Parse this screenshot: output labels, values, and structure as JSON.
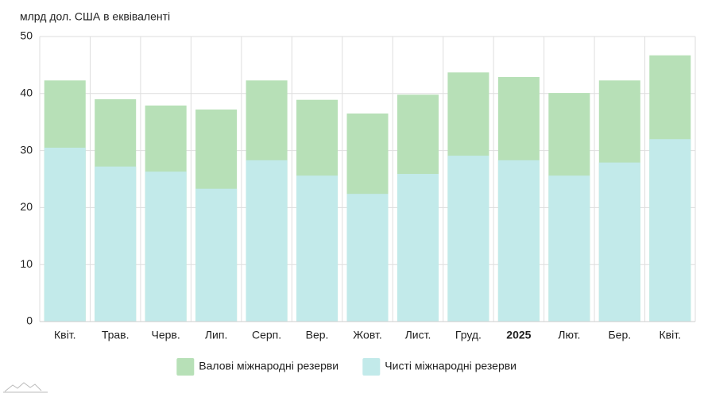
{
  "chart_data": {
    "type": "bar",
    "y_label": "млрд дол. США в еквіваленті",
    "categories": [
      "Квіт.",
      "Трав.",
      "Черв.",
      "Лип.",
      "Серп.",
      "Вер.",
      "Жовт.",
      "Лист.",
      "Груд.",
      "2025",
      "Лют.",
      "Бер.",
      "Квіт."
    ],
    "series": [
      {
        "name": "Валові міжнародні резерви",
        "color": "#b7e0b7",
        "values": [
          42.3,
          39.0,
          37.9,
          37.2,
          42.3,
          38.9,
          36.5,
          39.8,
          43.7,
          42.9,
          40.1,
          42.3,
          46.7
        ]
      },
      {
        "name": "Чисті міжнародні резерви",
        "color": "#c2eaea",
        "values": [
          30.5,
          27.2,
          26.3,
          23.3,
          28.3,
          25.6,
          22.4,
          25.9,
          29.1,
          28.3,
          25.6,
          27.9,
          32.0
        ]
      }
    ],
    "ylim": [
      0,
      50
    ],
    "yticks": [
      0,
      10,
      20,
      30,
      40,
      50
    ],
    "grid": true,
    "legend": "bottom"
  }
}
